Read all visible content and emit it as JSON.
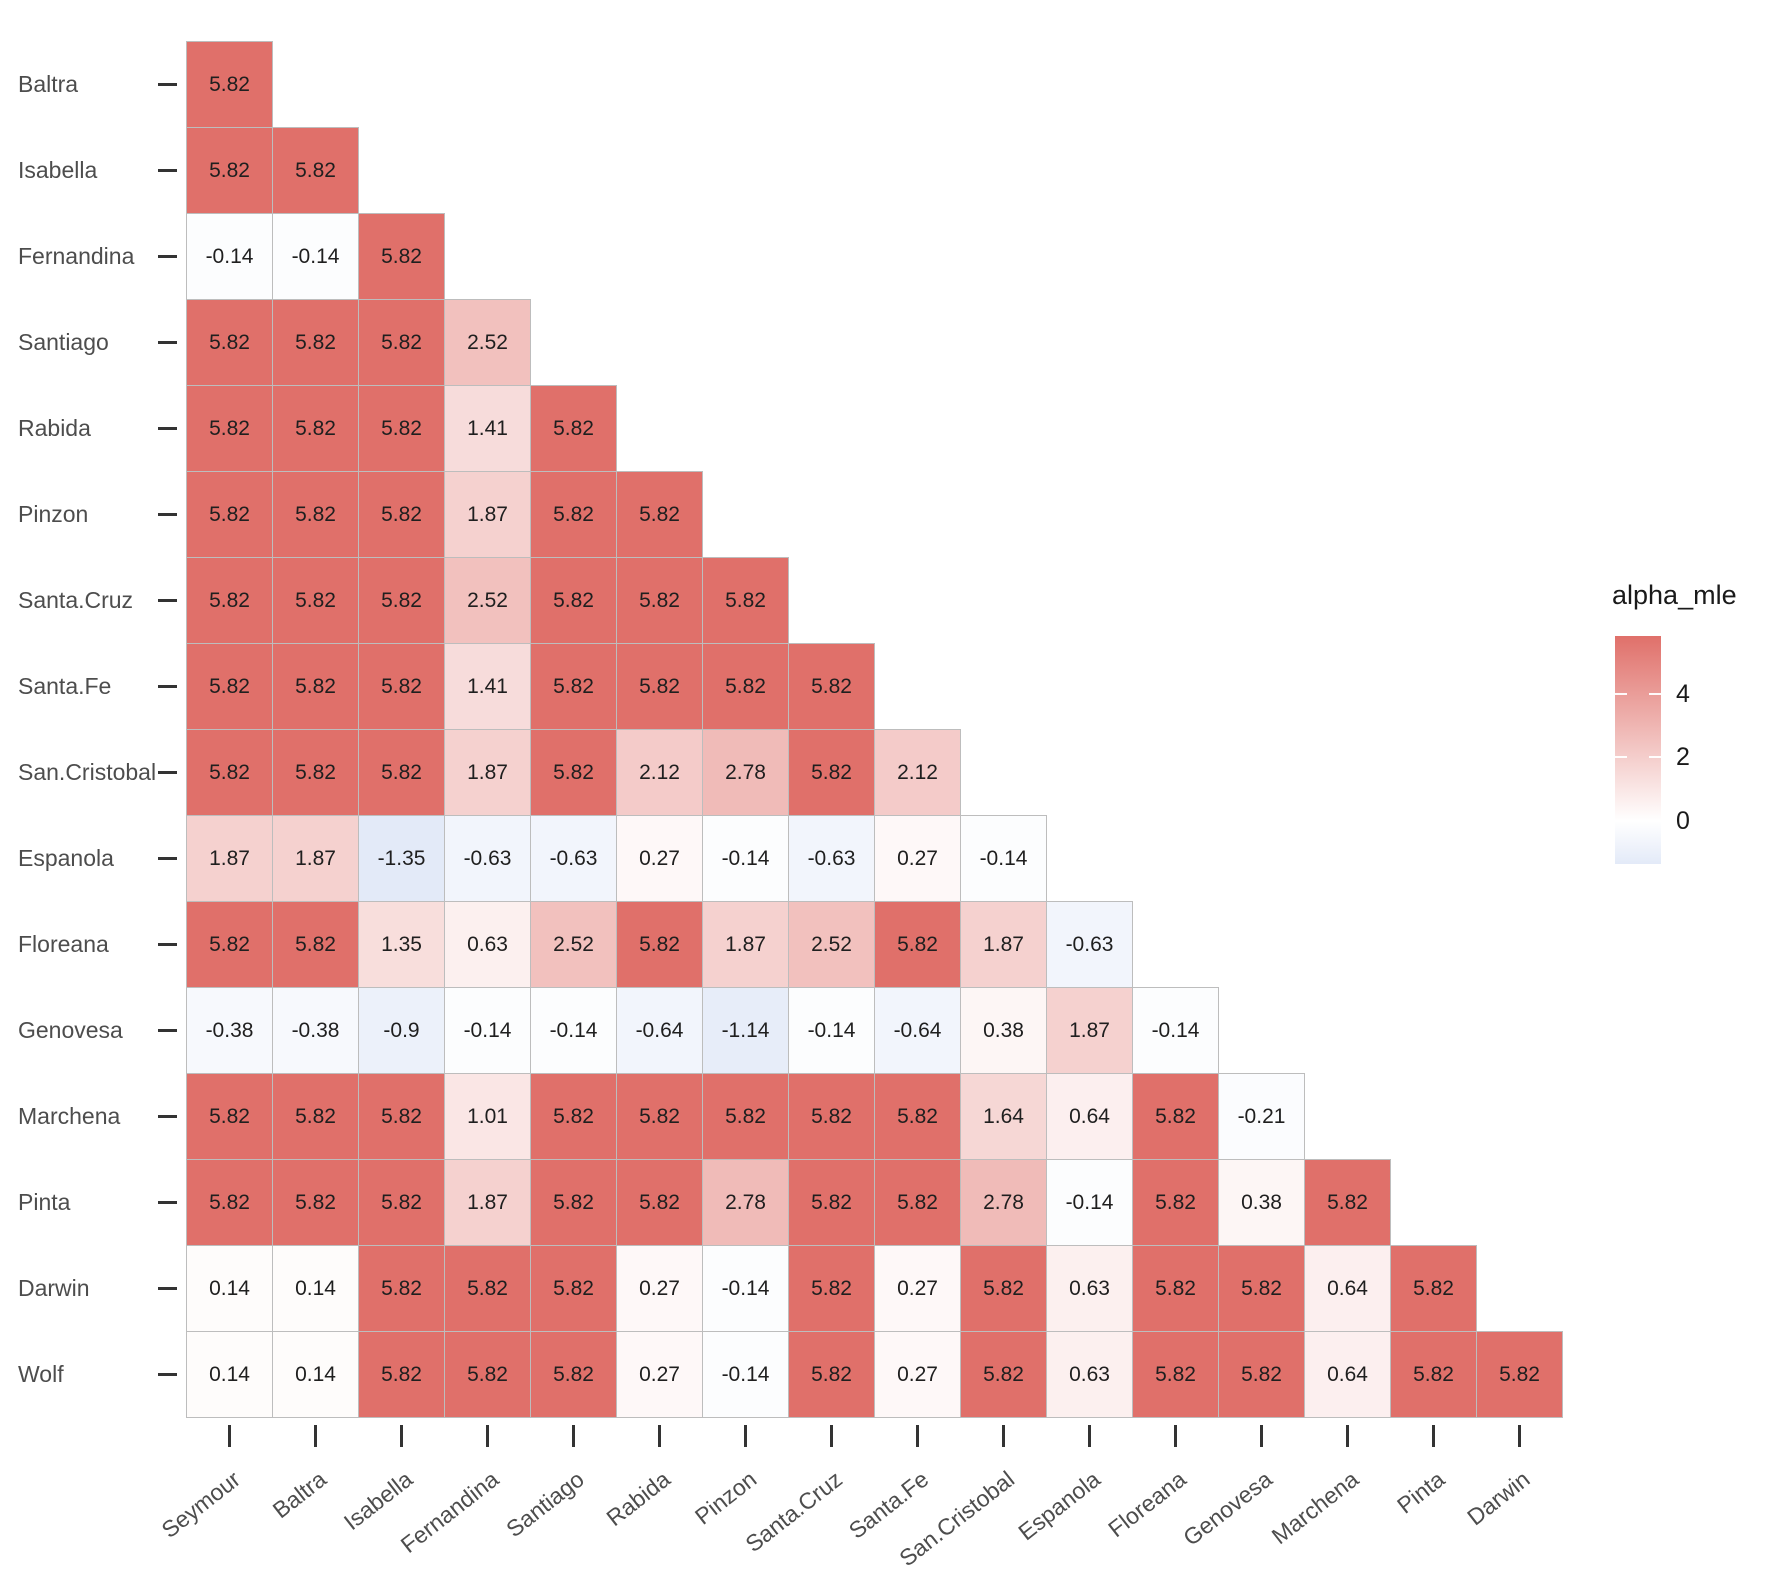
{
  "chart_data": {
    "type": "heatmap",
    "title": "",
    "legend_title": "alpha_mle",
    "x_categories": [
      "Seymour",
      "Baltra",
      "Isabella",
      "Fernandina",
      "Santiago",
      "Rabida",
      "Pinzon",
      "Santa.Cruz",
      "Santa.Fe",
      "San.Cristobal",
      "Espanola",
      "Floreana",
      "Genovesa",
      "Marchena",
      "Pinta",
      "Darwin"
    ],
    "y_categories": [
      "Baltra",
      "Isabella",
      "Fernandina",
      "Santiago",
      "Rabida",
      "Pinzon",
      "Santa.Cruz",
      "Santa.Fe",
      "San.Cristobal",
      "Espanola",
      "Floreana",
      "Genovesa",
      "Marchena",
      "Pinta",
      "Darwin",
      "Wolf"
    ],
    "values": [
      [
        5.82
      ],
      [
        5.82,
        5.82
      ],
      [
        -0.14,
        -0.14,
        5.82
      ],
      [
        5.82,
        5.82,
        5.82,
        2.52
      ],
      [
        5.82,
        5.82,
        5.82,
        1.41,
        5.82
      ],
      [
        5.82,
        5.82,
        5.82,
        1.87,
        5.82,
        5.82
      ],
      [
        5.82,
        5.82,
        5.82,
        2.52,
        5.82,
        5.82,
        5.82
      ],
      [
        5.82,
        5.82,
        5.82,
        1.41,
        5.82,
        5.82,
        5.82,
        5.82
      ],
      [
        5.82,
        5.82,
        5.82,
        1.87,
        5.82,
        2.12,
        2.78,
        5.82,
        2.12
      ],
      [
        1.87,
        1.87,
        -1.35,
        -0.63,
        -0.63,
        0.27,
        -0.14,
        -0.63,
        0.27,
        -0.14
      ],
      [
        5.82,
        5.82,
        1.35,
        0.63,
        2.52,
        5.82,
        1.87,
        2.52,
        5.82,
        1.87,
        -0.63
      ],
      [
        -0.38,
        -0.38,
        -0.9,
        -0.14,
        -0.14,
        -0.64,
        -1.14,
        -0.14,
        -0.64,
        0.38,
        1.87,
        -0.14
      ],
      [
        5.82,
        5.82,
        5.82,
        1.01,
        5.82,
        5.82,
        5.82,
        5.82,
        5.82,
        1.64,
        0.64,
        5.82,
        -0.21
      ],
      [
        5.82,
        5.82,
        5.82,
        1.87,
        5.82,
        5.82,
        2.78,
        5.82,
        5.82,
        2.78,
        -0.14,
        5.82,
        0.38,
        5.82
      ],
      [
        0.14,
        0.14,
        5.82,
        5.82,
        5.82,
        0.27,
        -0.14,
        5.82,
        0.27,
        5.82,
        0.63,
        5.82,
        5.82,
        0.64,
        5.82
      ],
      [
        0.14,
        0.14,
        5.82,
        5.82,
        5.82,
        0.27,
        -0.14,
        5.82,
        0.27,
        5.82,
        0.63,
        5.82,
        5.82,
        0.64,
        5.82,
        5.82
      ]
    ],
    "legend_ticks": [
      4,
      2,
      0
    ],
    "value_domain": [
      -1.35,
      5.82
    ],
    "midpoint": 0,
    "colors": {
      "high": "#E0706A",
      "mid": "#FFFFFF",
      "low": "#E3EAF8"
    },
    "layout": {
      "shape": "lower-triangular",
      "grid": false,
      "legend_position": "right",
      "x_label_angle": -38
    }
  }
}
